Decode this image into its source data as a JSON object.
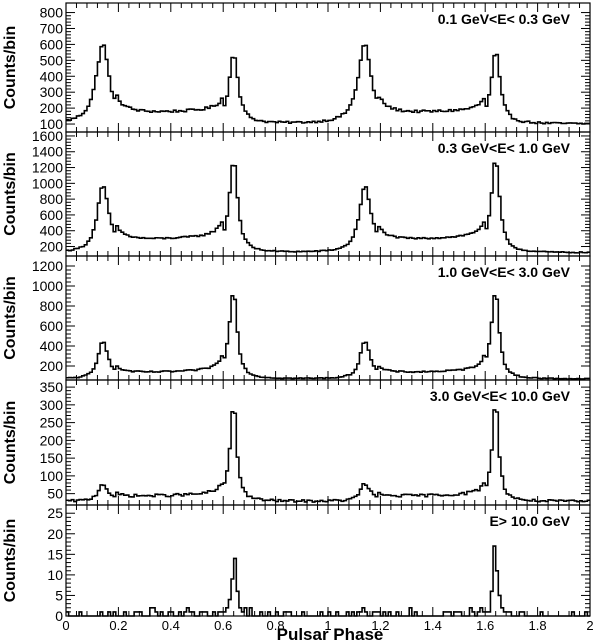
{
  "figure": {
    "xlabel": "Pulsar Phase",
    "x_ticks": [
      "0",
      "0.2",
      "0.4",
      "0.6",
      "0.8",
      "1",
      "1.2",
      "1.4",
      "1.6",
      "1.8",
      "2"
    ]
  },
  "chart_data": [
    {
      "type": "line",
      "title": "0.1 GeV<E< 0.3 GeV",
      "ylabel": "Counts/bin",
      "xlim": [
        0,
        2
      ],
      "ylim": [
        50,
        860
      ],
      "y_ticks": [
        100,
        200,
        300,
        400,
        500,
        600,
        700,
        800
      ],
      "peaks": [
        {
          "x": 0.14,
          "height": 600
        },
        {
          "x": 0.64,
          "height": 550
        },
        {
          "x": 1.14,
          "height": 600
        },
        {
          "x": 1.64,
          "height": 550
        }
      ],
      "baseline": 100,
      "bridge_level": 175,
      "widths": {
        "p1_left": 0.03,
        "p1_right": 0.03,
        "p2_left": 0.02,
        "p2_right": 0.02
      }
    },
    {
      "type": "line",
      "title": "0.3 GeV<E< 1.0 GeV",
      "ylabel": "Counts/bin",
      "xlim": [
        0,
        2
      ],
      "ylim": [
        80,
        1650
      ],
      "y_ticks": [
        200,
        400,
        600,
        800,
        1000,
        1200,
        1400,
        1600
      ],
      "peaks": [
        {
          "x": 0.14,
          "height": 960
        },
        {
          "x": 0.64,
          "height": 1300
        },
        {
          "x": 1.14,
          "height": 960
        },
        {
          "x": 1.64,
          "height": 1300
        }
      ],
      "baseline": 120,
      "bridge_level": 300,
      "widths": {
        "p1_left": 0.025,
        "p1_right": 0.03,
        "p2_left": 0.02,
        "p2_right": 0.018
      }
    },
    {
      "type": "line",
      "title": "1.0 GeV<E< 3.0 GeV",
      "ylabel": "Counts/bin",
      "xlim": [
        0,
        2
      ],
      "ylim": [
        60,
        1300
      ],
      "y_ticks": [
        200,
        400,
        600,
        800,
        1000,
        1200
      ],
      "peaks": [
        {
          "x": 0.14,
          "height": 460
        },
        {
          "x": 0.64,
          "height": 960
        },
        {
          "x": 1.14,
          "height": 460
        },
        {
          "x": 1.64,
          "height": 960
        }
      ],
      "baseline": 70,
      "bridge_level": 140,
      "widths": {
        "p1_left": 0.02,
        "p1_right": 0.025,
        "p2_left": 0.02,
        "p2_right": 0.016
      }
    },
    {
      "type": "line",
      "title": "3.0 GeV<E< 10.0 GeV",
      "ylabel": "Counts/bin",
      "xlim": [
        0,
        2
      ],
      "ylim": [
        18,
        370
      ],
      "y_ticks": [
        50,
        100,
        150,
        200,
        250,
        300,
        350
      ],
      "peaks": [
        {
          "x": 0.14,
          "height": 78
        },
        {
          "x": 0.64,
          "height": 308
        },
        {
          "x": 1.14,
          "height": 78
        },
        {
          "x": 1.64,
          "height": 308
        }
      ],
      "baseline": 28,
      "bridge_level": 45,
      "widths": {
        "p1_left": 0.02,
        "p1_right": 0.025,
        "p2_left": 0.016,
        "p2_right": 0.014
      }
    },
    {
      "type": "line",
      "title": "E> 10.0 GeV",
      "ylabel": "Counts/bin",
      "xlim": [
        0,
        2
      ],
      "ylim": [
        0,
        27
      ],
      "y_ticks": [
        0,
        5,
        10,
        15,
        20,
        25
      ],
      "peaks": [
        {
          "x": 0.14,
          "height": 2
        },
        {
          "x": 0.64,
          "height": 17
        },
        {
          "x": 1.14,
          "height": 2
        },
        {
          "x": 1.64,
          "height": 17
        }
      ],
      "baseline": 0,
      "bridge_level": 0.3,
      "widths": {
        "p1_left": 0.01,
        "p1_right": 0.01,
        "p2_left": 0.012,
        "p2_right": 0.012
      }
    }
  ]
}
